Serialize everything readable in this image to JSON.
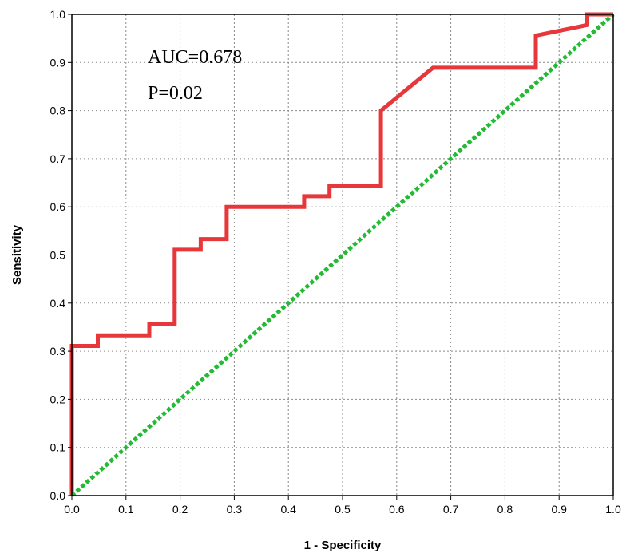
{
  "chart_data": {
    "type": "line",
    "xlabel": "1 - Specificity",
    "ylabel": "Sensitivity",
    "xlim": [
      0,
      1
    ],
    "ylim": [
      0,
      1
    ],
    "xticks": [
      "0.0",
      "0.1",
      "0.2",
      "0.3",
      "0.4",
      "0.5",
      "0.6",
      "0.7",
      "0.8",
      "0.9",
      "1.0"
    ],
    "yticks": [
      "0.0",
      "0.1",
      "0.2",
      "0.3",
      "0.4",
      "0.5",
      "0.6",
      "0.7",
      "0.8",
      "0.9",
      "1.0"
    ],
    "grid": true,
    "annotations": [
      "AUC=0.678",
      "P=0.02"
    ],
    "series": [
      {
        "color": "#e8373b",
        "style": "solid",
        "x": [
          0,
          0,
          0.048,
          0.048,
          0.143,
          0.143,
          0.19,
          0.19,
          0.238,
          0.238,
          0.286,
          0.286,
          0.429,
          0.429,
          0.476,
          0.476,
          0.571,
          0.571,
          0.667,
          0.857,
          0.857,
          0.952,
          0.952,
          1.0
        ],
        "y": [
          0,
          0.311,
          0.311,
          0.333,
          0.333,
          0.356,
          0.356,
          0.511,
          0.511,
          0.533,
          0.533,
          0.6,
          0.6,
          0.622,
          0.622,
          0.644,
          0.644,
          0.8,
          0.889,
          0.889,
          0.956,
          0.978,
          1.0,
          1.0
        ]
      },
      {
        "color": "#22bb33",
        "style": "dotted",
        "x": [
          0,
          1
        ],
        "y": [
          0,
          1
        ]
      }
    ]
  }
}
